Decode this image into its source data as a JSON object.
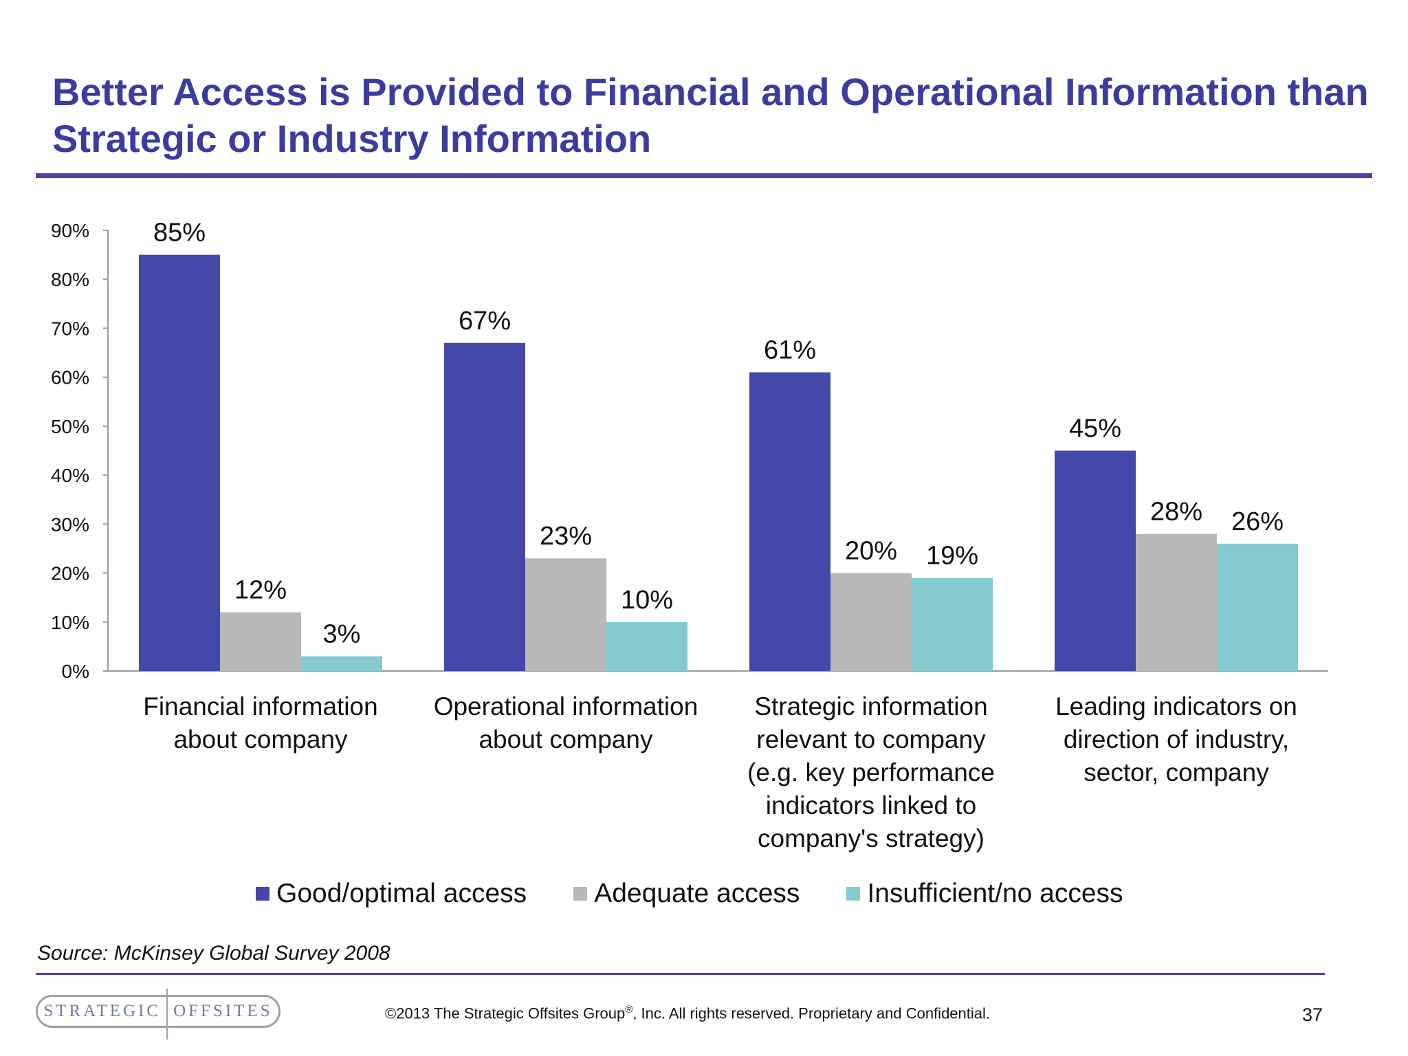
{
  "header": {
    "title_line1": "Better Access is Provided to Financial and Operational Information than",
    "title_line2": "Strategic or Industry Information"
  },
  "chart_data": {
    "type": "bar",
    "categories": [
      [
        "Financial information",
        "about company"
      ],
      [
        "Operational information",
        "about company"
      ],
      [
        "Strategic information",
        "relevant to company",
        "(e.g. key performance",
        "indicators linked to",
        "company's strategy)"
      ],
      [
        "Leading indicators on",
        "direction of industry,",
        "sector, company"
      ]
    ],
    "series": [
      {
        "name": "Good/optimal access",
        "color": "#4448a8",
        "values": [
          85,
          67,
          61,
          45
        ]
      },
      {
        "name": "Adequate access",
        "color": "#b8b8bb",
        "values": [
          12,
          23,
          20,
          28
        ]
      },
      {
        "name": "Insufficient/no access",
        "color": "#84cace",
        "values": [
          3,
          10,
          19,
          26
        ]
      }
    ],
    "yticks": [
      "0%",
      "10%",
      "20%",
      "30%",
      "40%",
      "50%",
      "60%",
      "70%",
      "80%",
      "90%"
    ],
    "ylim": [
      0,
      90
    ],
    "value_suffix": "%",
    "legend_position": "bottom",
    "grid": false
  },
  "footer": {
    "source": "Source: McKinsey Global Survey 2008",
    "logo_left": "STRATEGIC",
    "logo_right": "OFFSITES",
    "copyright_prefix": "©2013 The Strategic Offsites Group",
    "copyright_mark": "®",
    "copyright_suffix": ", Inc.  All rights reserved. Proprietary and Confidential.",
    "page_number": "37"
  }
}
